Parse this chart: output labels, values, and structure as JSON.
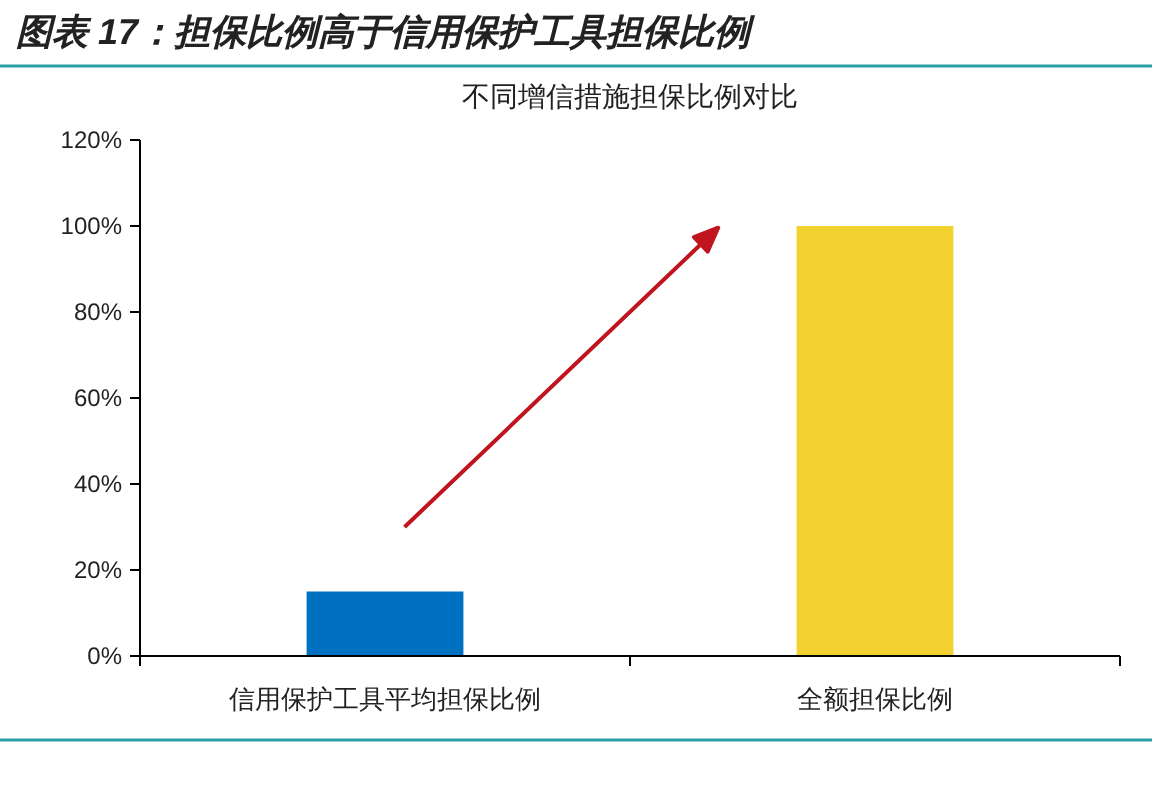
{
  "chart_data": {
    "type": "bar",
    "title": "图表 17：担保比例高于信用保护工具担保比例",
    "subtitle": "不同增信措施担保比例对比",
    "categories": [
      "信用保护工具平均担保比例",
      "全额担保比例"
    ],
    "values": [
      15,
      100
    ],
    "colors": [
      "#0070c0",
      "#f2d230"
    ],
    "ylim": [
      0,
      120
    ],
    "yticks": [
      {
        "value": 0,
        "label": "0%"
      },
      {
        "value": 20,
        "label": "20%"
      },
      {
        "value": 40,
        "label": "40%"
      },
      {
        "value": 60,
        "label": "60%"
      },
      {
        "value": 80,
        "label": "80%"
      },
      {
        "value": 100,
        "label": "100%"
      },
      {
        "value": 120,
        "label": "120%"
      }
    ],
    "grid": false
  }
}
